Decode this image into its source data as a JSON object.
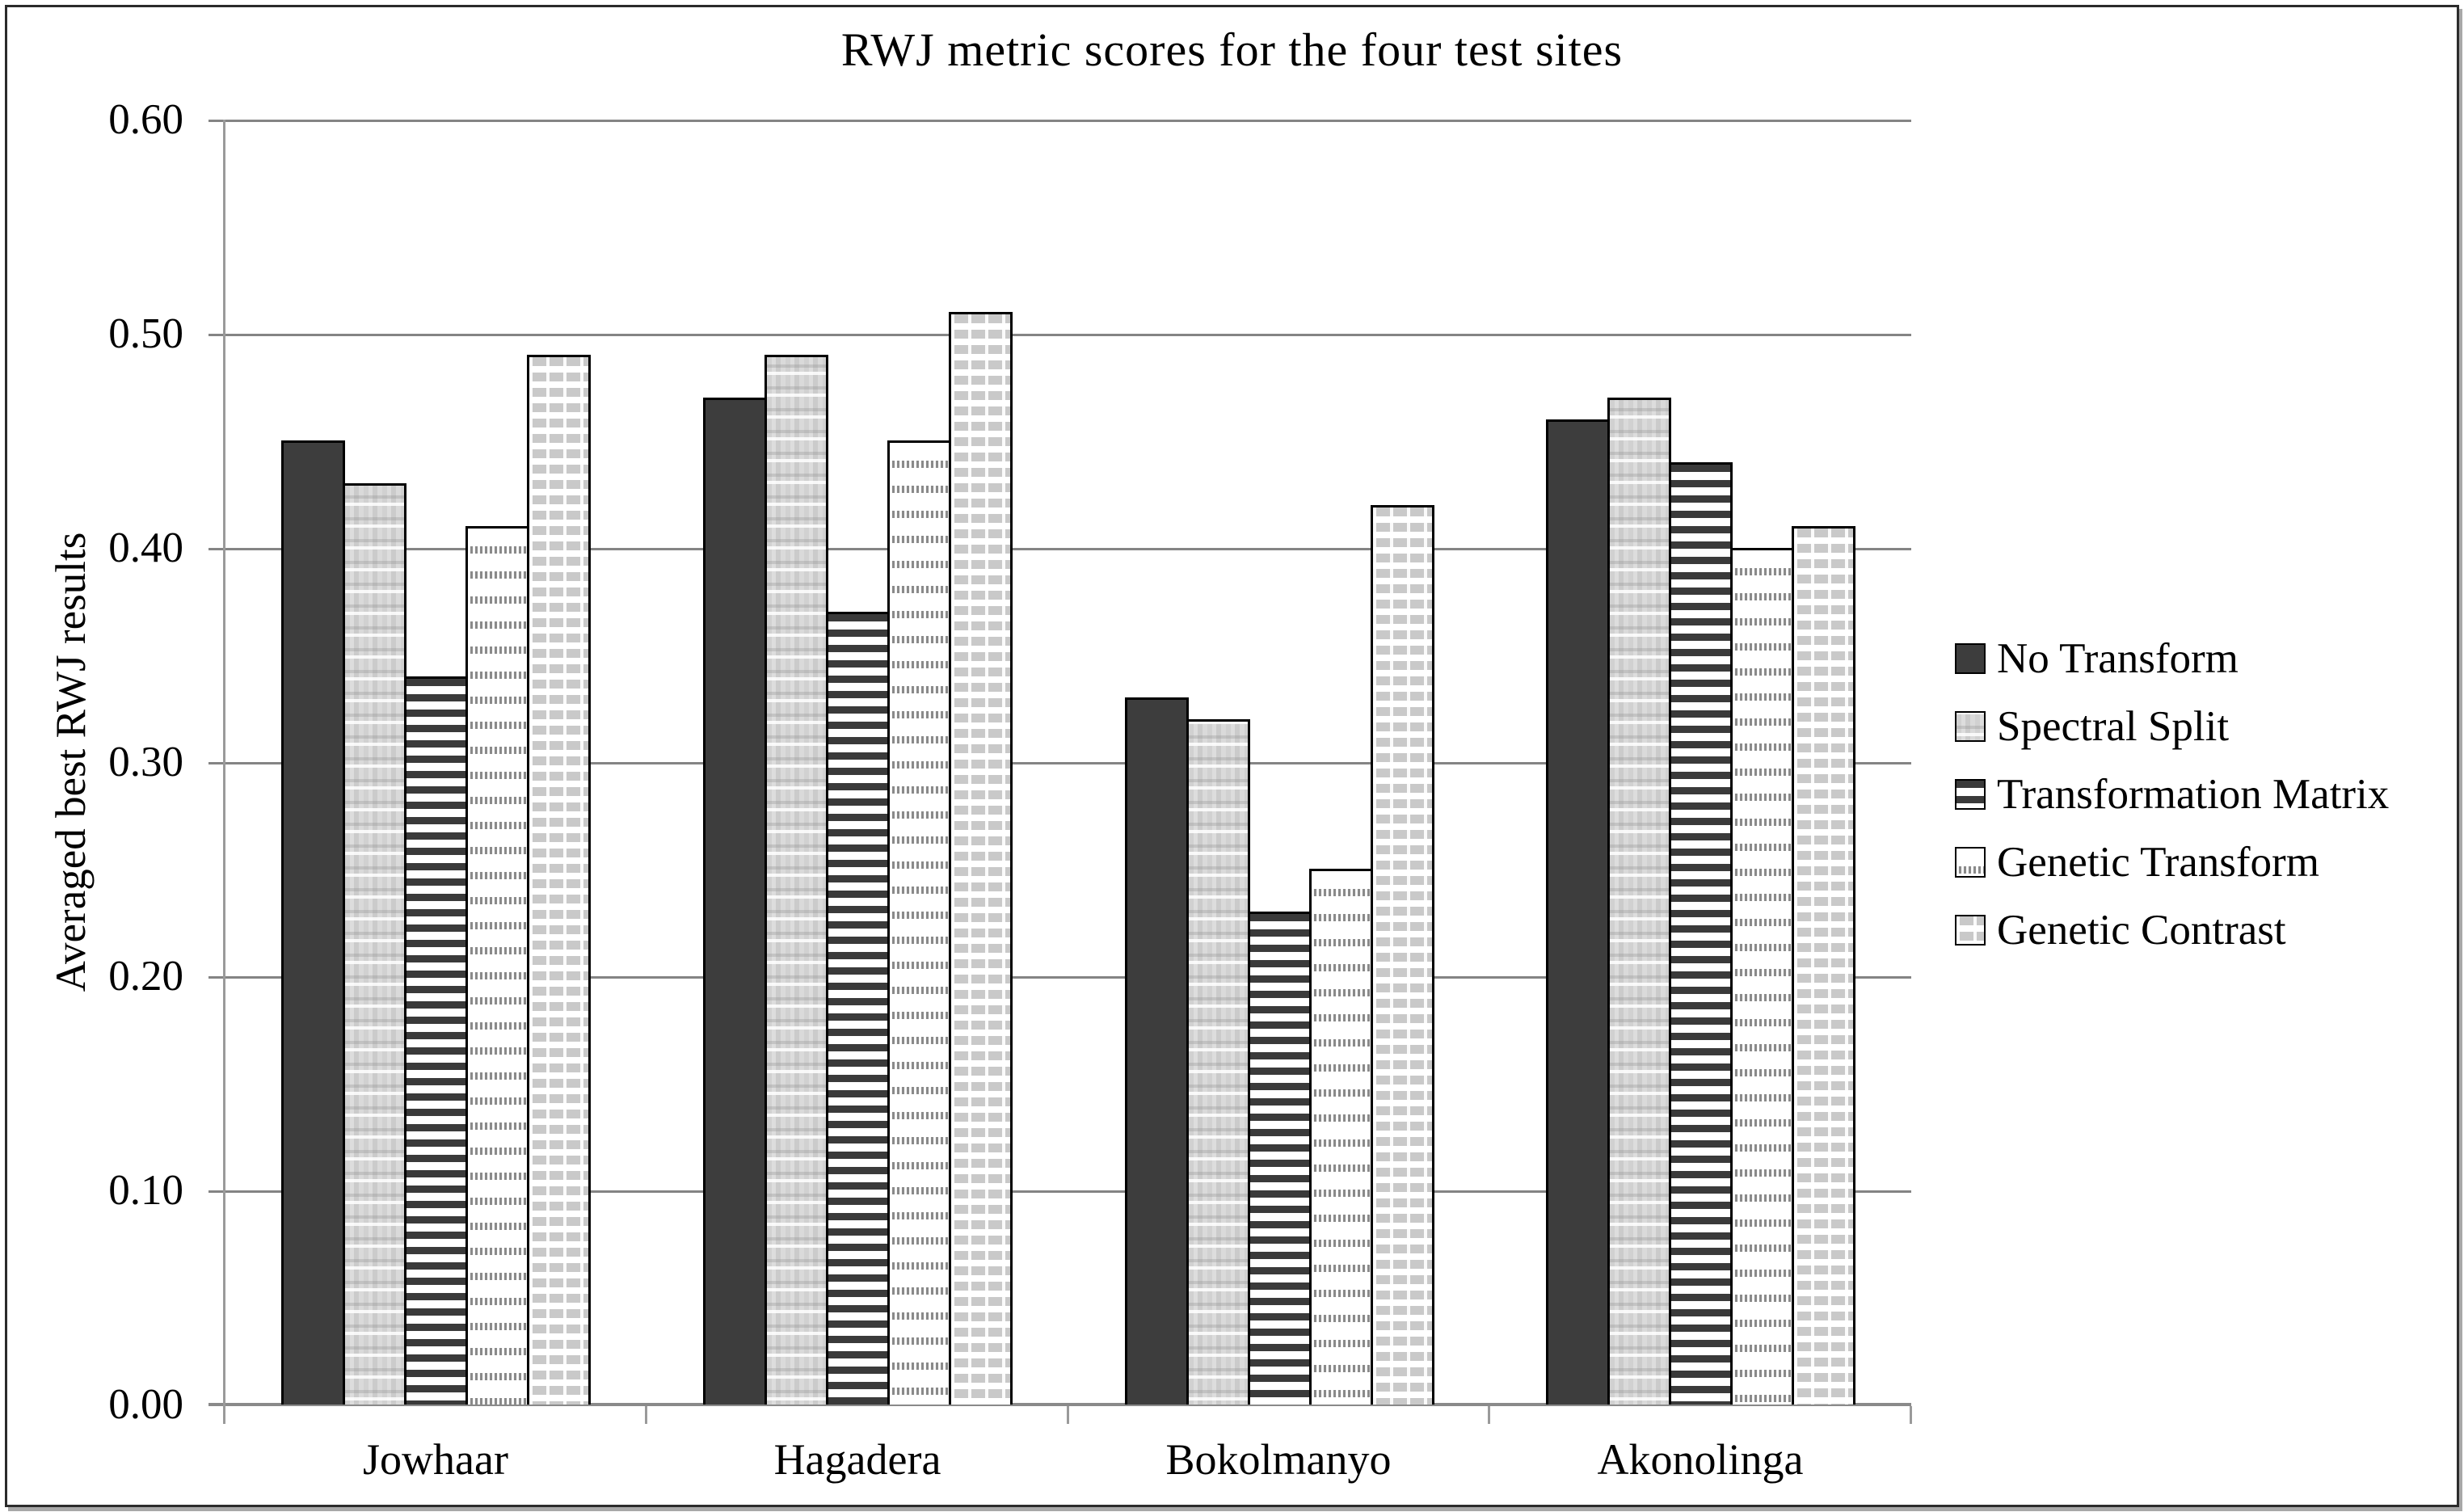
{
  "chart_data": {
    "type": "bar",
    "title": "RWJ metric scores for the four test sites",
    "ylabel": "Averaged best RWJ results",
    "xlabel": "",
    "ylim": [
      0.0,
      0.6
    ],
    "ytick_step": 0.1,
    "ytick_labels": [
      "0.60",
      "0.50",
      "0.40",
      "0.30",
      "0.20",
      "0.10",
      "0.00"
    ],
    "grid": "horizontal",
    "legend_position": "right",
    "categories": [
      "Jowhaar",
      "Hagadera",
      "Bokolmanyo",
      "Akonolinga"
    ],
    "series": [
      {
        "name": "No Transform",
        "pattern": "solid-dark-gray",
        "values": [
          0.45,
          0.47,
          0.33,
          0.46
        ]
      },
      {
        "name": "Spectral Split",
        "pattern": "speckled-light-gray",
        "values": [
          0.43,
          0.49,
          0.32,
          0.47
        ]
      },
      {
        "name": "Transformation Matrix",
        "pattern": "dark-horizontal-stripes",
        "values": [
          0.34,
          0.37,
          0.23,
          0.44
        ]
      },
      {
        "name": "Genetic Transform",
        "pattern": "white-dotted-rows",
        "values": [
          0.41,
          0.45,
          0.25,
          0.4
        ]
      },
      {
        "name": "Genetic Contrast",
        "pattern": "light-gray-horizontal-stripes",
        "values": [
          0.49,
          0.51,
          0.42,
          0.41
        ]
      }
    ],
    "colors": {
      "dark_fill": "#3d3d3d",
      "light_fill": "#d6d6d6",
      "bar_outline": "#000000",
      "gridline": "#848484",
      "axis": "#8a8a8a",
      "text": "#000000",
      "frame_border": "#2b2b2b",
      "frame_shadow": "#a8a8a8",
      "background": "#ffffff"
    }
  }
}
